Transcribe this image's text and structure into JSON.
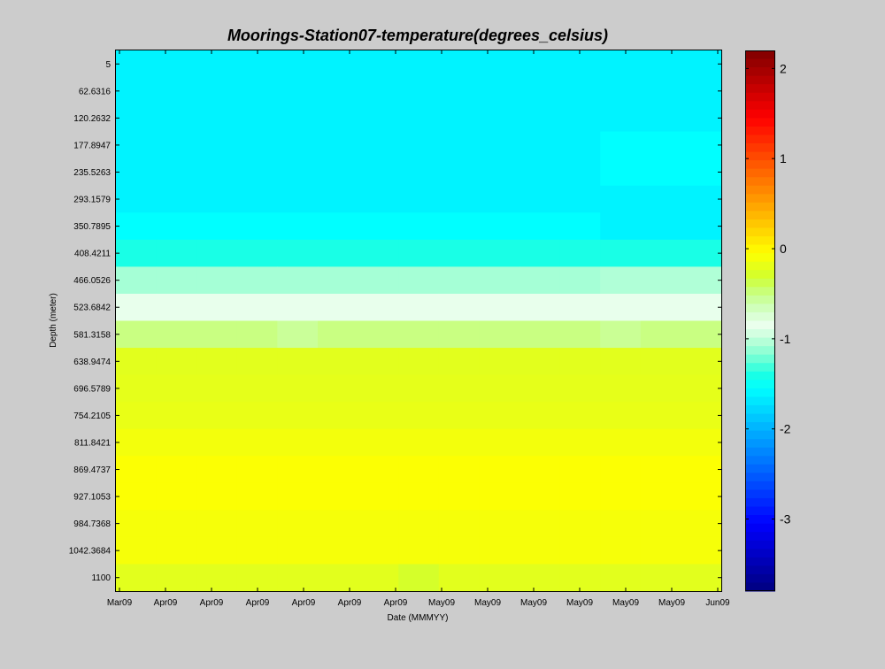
{
  "chart_data": {
    "type": "heatmap",
    "title": "Moorings-Station07-temperature(degrees_celsius)",
    "xlabel": "Date (MMMYY)",
    "ylabel": "Depth (meter)",
    "x_tick_labels": [
      "Mar09",
      "Apr09",
      "Apr09",
      "Apr09",
      "Apr09",
      "Apr09",
      "Apr09",
      "May09",
      "May09",
      "May09",
      "May09",
      "May09",
      "May09",
      "Jun09"
    ],
    "y_tick_labels": [
      "5",
      "62.6316",
      "120.2632",
      "177.8947",
      "235.5263",
      "293.1579",
      "350.7895",
      "408.4211",
      "466.0526",
      "523.6842",
      "581.3158",
      "638.9474",
      "696.5789",
      "754.2105",
      "811.8421",
      "869.4737",
      "927.1053",
      "984.7368",
      "1042.3684",
      "1100"
    ],
    "depths": [
      5,
      62.6316,
      120.2632,
      177.8947,
      235.5263,
      293.1579,
      350.7895,
      408.4211,
      466.0526,
      523.6842,
      581.3158,
      638.9474,
      696.5789,
      754.2105,
      811.8421,
      869.4737,
      927.1053,
      984.7368,
      1042.3684,
      1100
    ],
    "color_range": [
      -3.8,
      2.2
    ],
    "colorbar_ticks": [
      2,
      1,
      0,
      -1,
      -2,
      -3
    ],
    "colormap": "jet",
    "grid": false,
    "values": [
      [
        -1.62,
        -1.62,
        -1.62,
        -1.62,
        -1.62,
        -1.62,
        -1.62,
        -1.62,
        -1.62,
        -1.62,
        -1.62,
        -1.62,
        -1.62,
        -1.62,
        -1.62
      ],
      [
        -1.62,
        -1.62,
        -1.62,
        -1.62,
        -1.62,
        -1.62,
        -1.62,
        -1.62,
        -1.62,
        -1.62,
        -1.62,
        -1.62,
        -1.62,
        -1.62,
        -1.62
      ],
      [
        -1.62,
        -1.62,
        -1.62,
        -1.62,
        -1.62,
        -1.62,
        -1.62,
        -1.62,
        -1.62,
        -1.62,
        -1.62,
        -1.62,
        -1.62,
        -1.62,
        -1.62
      ],
      [
        -1.62,
        -1.62,
        -1.62,
        -1.62,
        -1.62,
        -1.62,
        -1.62,
        -1.62,
        -1.62,
        -1.62,
        -1.62,
        -1.62,
        -1.55,
        -1.55,
        -1.55
      ],
      [
        -1.62,
        -1.62,
        -1.62,
        -1.62,
        -1.62,
        -1.62,
        -1.62,
        -1.62,
        -1.62,
        -1.62,
        -1.62,
        -1.62,
        -1.55,
        -1.55,
        -1.55
      ],
      [
        -1.62,
        -1.62,
        -1.62,
        -1.62,
        -1.62,
        -1.62,
        -1.62,
        -1.62,
        -1.62,
        -1.62,
        -1.62,
        -1.62,
        -1.62,
        -1.62,
        -1.62
      ],
      [
        -1.55,
        -1.55,
        -1.55,
        -1.55,
        -1.55,
        -1.55,
        -1.55,
        -1.55,
        -1.55,
        -1.55,
        -1.55,
        -1.55,
        -1.62,
        -1.62,
        -1.62
      ],
      [
        -1.4,
        -1.4,
        -1.4,
        -1.4,
        -1.4,
        -1.4,
        -1.4,
        -1.4,
        -1.4,
        -1.4,
        -1.4,
        -1.4,
        -1.4,
        -1.4,
        -1.4
      ],
      [
        -1.08,
        -1.08,
        -1.08,
        -1.08,
        -1.08,
        -1.08,
        -1.08,
        -1.08,
        -1.08,
        -1.08,
        -1.08,
        -1.08,
        -1.05,
        -1.05,
        -1.05
      ],
      [
        -0.86,
        -0.86,
        -0.86,
        -0.86,
        -0.86,
        -0.86,
        -0.86,
        -0.86,
        -0.86,
        -0.86,
        -0.86,
        -0.86,
        -0.86,
        -0.86,
        -0.86
      ],
      [
        -0.5,
        -0.5,
        -0.5,
        -0.5,
        -0.56,
        -0.5,
        -0.5,
        -0.5,
        -0.5,
        -0.5,
        -0.5,
        -0.5,
        -0.55,
        -0.5,
        -0.5
      ],
      [
        -0.22,
        -0.22,
        -0.22,
        -0.22,
        -0.22,
        -0.22,
        -0.22,
        -0.22,
        -0.22,
        -0.22,
        -0.22,
        -0.22,
        -0.22,
        -0.22,
        -0.22
      ],
      [
        -0.2,
        -0.2,
        -0.2,
        -0.2,
        -0.2,
        -0.2,
        -0.2,
        -0.2,
        -0.2,
        -0.2,
        -0.2,
        -0.2,
        -0.2,
        -0.2,
        -0.2
      ],
      [
        -0.18,
        -0.18,
        -0.18,
        -0.18,
        -0.18,
        -0.18,
        -0.18,
        -0.18,
        -0.18,
        -0.18,
        -0.18,
        -0.18,
        -0.18,
        -0.18,
        -0.18
      ],
      [
        -0.12,
        -0.12,
        -0.12,
        -0.12,
        -0.12,
        -0.12,
        -0.12,
        -0.12,
        -0.12,
        -0.12,
        -0.12,
        -0.12,
        -0.12,
        -0.12,
        -0.12
      ],
      [
        -0.07,
        -0.07,
        -0.07,
        -0.07,
        -0.07,
        -0.07,
        -0.07,
        -0.07,
        -0.07,
        -0.07,
        -0.07,
        -0.07,
        -0.07,
        -0.07,
        -0.07
      ],
      [
        -0.07,
        -0.07,
        -0.07,
        -0.07,
        -0.07,
        -0.07,
        -0.07,
        -0.07,
        -0.07,
        -0.07,
        -0.07,
        -0.07,
        -0.07,
        -0.07,
        -0.07
      ],
      [
        -0.1,
        -0.1,
        -0.1,
        -0.1,
        -0.1,
        -0.1,
        -0.1,
        -0.1,
        -0.1,
        -0.1,
        -0.1,
        -0.1,
        -0.1,
        -0.1,
        -0.1
      ],
      [
        -0.1,
        -0.1,
        -0.1,
        -0.1,
        -0.1,
        -0.1,
        -0.1,
        -0.1,
        -0.1,
        -0.1,
        -0.1,
        -0.1,
        -0.1,
        -0.1,
        -0.1
      ],
      [
        -0.22,
        -0.22,
        -0.22,
        -0.22,
        -0.22,
        -0.22,
        -0.22,
        -0.3,
        -0.22,
        -0.22,
        -0.22,
        -0.22,
        -0.22,
        -0.22,
        -0.22
      ]
    ]
  }
}
